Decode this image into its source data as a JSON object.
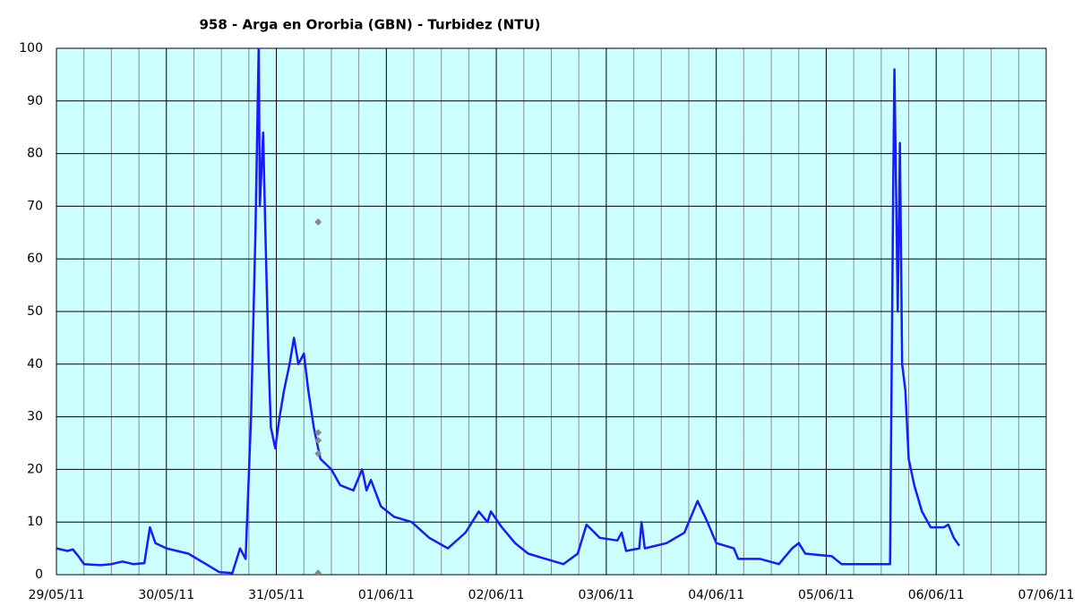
{
  "chart_data": {
    "type": "line",
    "title": "958 - Arga en Ororbia (GBN) - Turbidez (NTU)",
    "xlim": [
      0,
      9
    ],
    "xticks": [
      {
        "value": 0,
        "label": "29/05/11"
      },
      {
        "value": 1,
        "label": "30/05/11"
      },
      {
        "value": 2,
        "label": "31/05/11"
      },
      {
        "value": 3,
        "label": "01/06/11"
      },
      {
        "value": 4,
        "label": "02/06/11"
      },
      {
        "value": 5,
        "label": "03/06/11"
      },
      {
        "value": 6,
        "label": "04/06/11"
      },
      {
        "value": 7,
        "label": "05/06/11"
      },
      {
        "value": 8,
        "label": "06/06/11"
      },
      {
        "value": 9,
        "label": "07/06/11"
      }
    ],
    "ylim": [
      0,
      100
    ],
    "yticks": [
      0,
      10,
      20,
      30,
      40,
      50,
      60,
      70,
      80,
      90,
      100
    ],
    "grid": true,
    "background": "#ccffff",
    "series": [
      {
        "type": "line",
        "color": "#1a1aff",
        "x": [
          0,
          0.1,
          0.15,
          0.2,
          0.25,
          0.4,
          0.5,
          0.6,
          0.7,
          0.8,
          0.85,
          0.9,
          1.0,
          1.2,
          1.36,
          1.48,
          1.6,
          1.67,
          1.72,
          1.77,
          1.81,
          1.84,
          1.85,
          1.88,
          1.9,
          1.93,
          1.95,
          1.99,
          2.03,
          2.07,
          2.12,
          2.16,
          2.2,
          2.25,
          2.29,
          2.34,
          2.4,
          2.5,
          2.58,
          2.7,
          2.78,
          2.82,
          2.86,
          2.95,
          3.07,
          3.23,
          3.39,
          3.56,
          3.72,
          3.84,
          3.92,
          3.95,
          4.05,
          4.17,
          4.29,
          4.45,
          4.61,
          4.74,
          4.82,
          4.94,
          5.1,
          5.14,
          5.18,
          5.3,
          5.32,
          5.35,
          5.55,
          5.71,
          5.83,
          5.92,
          6.0,
          6.16,
          6.2,
          6.4,
          6.57,
          6.69,
          6.75,
          6.81,
          7.05,
          7.14,
          7.38,
          7.58,
          7.61,
          7.62,
          7.65,
          7.67,
          7.69,
          7.72,
          7.75,
          7.8,
          7.87,
          7.95,
          8.07,
          8.11,
          8.16,
          8.21
        ],
        "values": [
          5,
          4.5,
          4.8,
          3.5,
          2,
          1.8,
          2,
          2.5,
          2,
          2.2,
          9,
          6,
          5,
          4,
          2,
          0.5,
          0.3,
          5,
          3,
          30,
          65,
          101,
          70,
          84,
          65,
          40,
          28,
          24,
          30,
          35,
          40,
          45,
          40,
          42,
          35,
          28,
          22,
          20,
          17,
          16,
          20,
          16,
          18,
          13,
          11,
          10,
          7,
          5,
          8,
          12,
          10,
          12,
          9,
          6,
          4,
          3,
          2,
          4,
          9.5,
          7,
          6.5,
          8,
          4.5,
          5,
          10,
          5,
          6,
          8,
          14,
          10,
          6,
          5,
          3,
          3,
          2,
          5,
          6,
          4,
          3.5,
          2,
          2,
          2,
          75,
          96,
          50,
          82,
          40,
          35,
          22,
          17,
          12,
          9,
          9,
          9.5,
          7,
          5.5
        ]
      },
      {
        "type": "scatter",
        "color": "#888888",
        "x": [
          2.38,
          2.38,
          2.38,
          2.38,
          2.38
        ],
        "values": [
          67,
          27,
          25.5,
          23,
          0.3
        ]
      }
    ]
  }
}
